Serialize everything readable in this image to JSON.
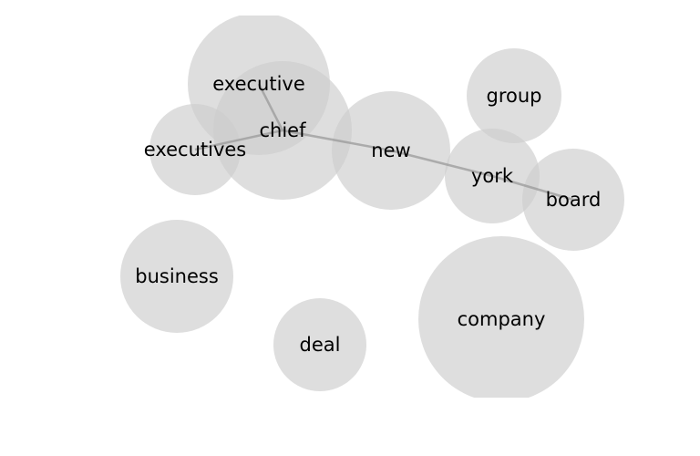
{
  "graph": {
    "colors": {
      "node_fill": "#cccccc",
      "edge_stroke": "#999999",
      "label_text": "#000000",
      "background": "#ffffff"
    },
    "nodes": [
      {
        "id": "executive",
        "label": "executive"
      },
      {
        "id": "chief",
        "label": "chief"
      },
      {
        "id": "executives",
        "label": "executives"
      },
      {
        "id": "new",
        "label": "new"
      },
      {
        "id": "group",
        "label": "group"
      },
      {
        "id": "york",
        "label": "york"
      },
      {
        "id": "board",
        "label": "board"
      },
      {
        "id": "business",
        "label": "business"
      },
      {
        "id": "company",
        "label": "company"
      },
      {
        "id": "deal",
        "label": "deal"
      }
    ],
    "edges": [
      {
        "source": "executive",
        "target": "chief"
      },
      {
        "source": "executives",
        "target": "chief"
      },
      {
        "source": "chief",
        "target": "new"
      },
      {
        "source": "new",
        "target": "york"
      },
      {
        "source": "york",
        "target": "board"
      }
    ]
  }
}
